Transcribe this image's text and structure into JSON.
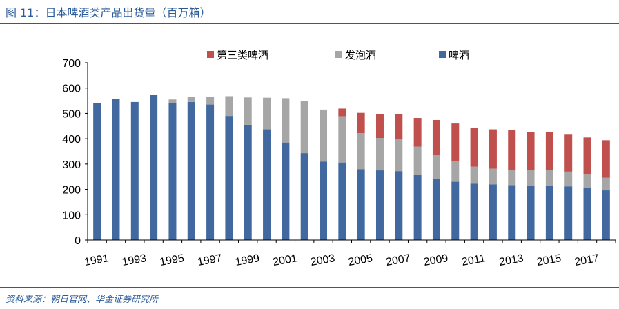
{
  "header": {
    "title": "图 11：日本啤酒类产品出货量（百万箱）"
  },
  "footer": {
    "source": "资料来源：朝日官网、华金证券研究所"
  },
  "colors": {
    "beer": "#4169a0",
    "happoshu": "#a6a6a6",
    "third_beer": "#c0504d",
    "axis": "#000000",
    "title": "#2a5a9a"
  },
  "chart_data": {
    "type": "bar",
    "stacked": true,
    "title": "日本啤酒类产品出货量（百万箱）",
    "xlabel": "",
    "ylabel": "",
    "ylim": [
      0,
      700
    ],
    "yticks": [
      0,
      100,
      200,
      300,
      400,
      500,
      600,
      700
    ],
    "grid": false,
    "legend_position": "top",
    "legend": [
      "第三类啤酒",
      "发泡酒",
      "啤酒"
    ],
    "categories": [
      "1991",
      "1992",
      "1993",
      "1994",
      "1995",
      "1996",
      "1997",
      "1998",
      "1999",
      "2000",
      "2001",
      "2002",
      "2003",
      "2004",
      "2005",
      "2006",
      "2007",
      "2008",
      "2009",
      "2010",
      "2011",
      "2012",
      "2013",
      "2014",
      "2015",
      "2016",
      "2017",
      "2018"
    ],
    "xtick_labels": [
      "1991",
      "1993",
      "1995",
      "1997",
      "1999",
      "2001",
      "2003",
      "2005",
      "2007",
      "2009",
      "2011",
      "2013",
      "2015",
      "2017"
    ],
    "series": [
      {
        "name": "啤酒",
        "color_key": "beer",
        "values": [
          540,
          556,
          545,
          572,
          540,
          545,
          535,
          490,
          455,
          437,
          385,
          343,
          310,
          306,
          280,
          275,
          272,
          257,
          240,
          230,
          222,
          220,
          217,
          215,
          215,
          212,
          206,
          196
        ]
      },
      {
        "name": "发泡酒",
        "color_key": "happoshu",
        "values": [
          0,
          0,
          0,
          0,
          15,
          20,
          30,
          78,
          108,
          125,
          175,
          205,
          205,
          183,
          142,
          128,
          125,
          112,
          96,
          80,
          68,
          62,
          60,
          60,
          62,
          58,
          55,
          50
        ]
      },
      {
        "name": "第三类啤酒",
        "color_key": "third_beer",
        "values": [
          0,
          0,
          0,
          0,
          0,
          0,
          0,
          0,
          0,
          0,
          0,
          0,
          0,
          30,
          80,
          95,
          100,
          113,
          138,
          150,
          152,
          155,
          158,
          152,
          148,
          146,
          144,
          148
        ]
      }
    ]
  }
}
